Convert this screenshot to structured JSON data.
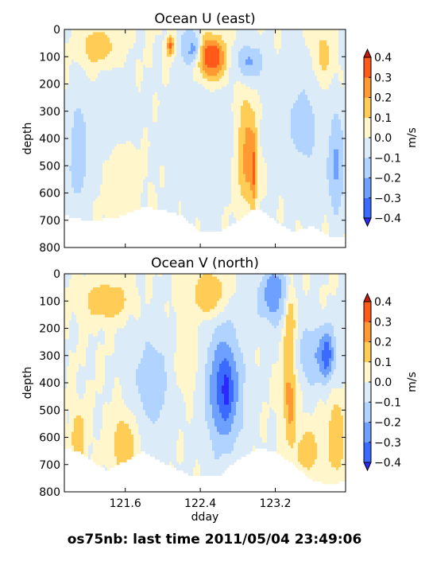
{
  "figure_title": "os75nb: last time 2011/05/04 23:49:06",
  "chart_data": [
    {
      "type": "heatmap",
      "title": "Ocean U (east)",
      "xlabel": "",
      "ylabel": "depth",
      "xlim": [
        120.95,
        123.95
      ],
      "ylim": [
        800,
        0
      ],
      "yticks": [
        "0",
        "100",
        "200",
        "300",
        "400",
        "500",
        "600",
        "700",
        "800"
      ],
      "xticks": [
        "121.6",
        "122.4",
        "123.2"
      ],
      "show_xticklabels": false,
      "colorbar": {
        "label": "m/s",
        "ticks": [
          "0.4",
          "0.3",
          "0.2",
          "0.1",
          "0.0",
          "−0.1",
          "−0.2",
          "−0.3",
          "−0.4"
        ],
        "levels": [
          -0.4,
          -0.3,
          -0.2,
          -0.1,
          0.0,
          0.1,
          0.2,
          0.3,
          0.4
        ],
        "colors": [
          "#2a2aff",
          "#3a6aff",
          "#6ea0ff",
          "#b0d4ff",
          "#dcebf8",
          "#fff6cc",
          "#ffcc55",
          "#ff9a33",
          "#ff5a1a",
          "#cc1a0a"
        ]
      },
      "bottom_profile": [
        [
          120.95,
          680
        ],
        [
          121.2,
          700
        ],
        [
          121.5,
          690
        ],
        [
          121.8,
          650
        ],
        [
          122.0,
          660
        ],
        [
          122.2,
          680
        ],
        [
          122.4,
          740
        ],
        [
          122.6,
          740
        ],
        [
          122.8,
          700
        ],
        [
          123.0,
          650
        ],
        [
          123.2,
          700
        ],
        [
          123.4,
          740
        ],
        [
          123.6,
          720
        ],
        [
          123.8,
          760
        ],
        [
          123.95,
          760
        ]
      ],
      "features": [
        {
          "x": 122.52,
          "y": 120,
          "rx": 0.15,
          "ry": 90,
          "value": 0.45
        },
        {
          "x": 122.52,
          "y": 110,
          "rx": 0.1,
          "ry": 55,
          "value": 0.5
        },
        {
          "x": 122.3,
          "y": 70,
          "rx": 0.06,
          "ry": 40,
          "value": -0.45
        },
        {
          "x": 122.28,
          "y": 60,
          "rx": 0.1,
          "ry": 70,
          "value": -0.2
        },
        {
          "x": 122.08,
          "y": 60,
          "rx": 0.04,
          "ry": 40,
          "value": 0.35
        },
        {
          "x": 121.3,
          "y": 60,
          "rx": 0.12,
          "ry": 40,
          "value": 0.35
        },
        {
          "x": 121.35,
          "y": 80,
          "rx": 0.2,
          "ry": 70,
          "value": 0.15
        },
        {
          "x": 122.85,
          "y": 420,
          "rx": 0.13,
          "ry": 200,
          "value": 0.25
        },
        {
          "x": 122.9,
          "y": 450,
          "rx": 0.07,
          "ry": 150,
          "value": 0.38
        },
        {
          "x": 122.97,
          "y": 500,
          "rx": 0.03,
          "ry": 120,
          "value": 0.45
        },
        {
          "x": 122.92,
          "y": 120,
          "rx": 0.15,
          "ry": 70,
          "value": -0.22
        },
        {
          "x": 123.7,
          "y": 120,
          "rx": 0.12,
          "ry": 120,
          "value": 0.22
        },
        {
          "x": 121.5,
          "y": 300,
          "rx": 0.22,
          "ry": 160,
          "value": -0.08
        },
        {
          "x": 121.1,
          "y": 450,
          "rx": 0.1,
          "ry": 200,
          "value": -0.2
        },
        {
          "x": 121.6,
          "y": 550,
          "rx": 0.2,
          "ry": 150,
          "value": 0.05
        },
        {
          "x": 122.45,
          "y": 400,
          "rx": 0.4,
          "ry": 240,
          "value": -0.1
        },
        {
          "x": 123.5,
          "y": 350,
          "rx": 0.3,
          "ry": 260,
          "value": -0.12
        },
        {
          "x": 123.85,
          "y": 500,
          "rx": 0.08,
          "ry": 200,
          "value": -0.22
        }
      ]
    },
    {
      "type": "heatmap",
      "title": "Ocean V (north)",
      "xlabel": "dday",
      "ylabel": "depth",
      "xlim": [
        120.95,
        123.95
      ],
      "ylim": [
        800,
        0
      ],
      "yticks": [
        "0",
        "100",
        "200",
        "300",
        "400",
        "500",
        "600",
        "700",
        "800"
      ],
      "xticks": [
        "121.6",
        "122.4",
        "123.2"
      ],
      "show_xticklabels": true,
      "colorbar": {
        "label": "m/s",
        "ticks": [
          "0.4",
          "0.3",
          "0.2",
          "0.1",
          "0.0",
          "−0.1",
          "−0.2",
          "−0.3",
          "−0.4"
        ],
        "levels": [
          -0.4,
          -0.3,
          -0.2,
          -0.1,
          0.0,
          0.1,
          0.2,
          0.3,
          0.4
        ],
        "colors": [
          "#2a2aff",
          "#3a6aff",
          "#6ea0ff",
          "#b0d4ff",
          "#dcebf8",
          "#fff6cc",
          "#ffcc55",
          "#ff9a33",
          "#ff5a1a",
          "#cc1a0a"
        ]
      },
      "bottom_profile": [
        [
          120.95,
          640
        ],
        [
          121.1,
          650
        ],
        [
          121.4,
          720
        ],
        [
          121.8,
          650
        ],
        [
          122.0,
          690
        ],
        [
          122.3,
          740
        ],
        [
          122.6,
          740
        ],
        [
          122.8,
          680
        ],
        [
          123.0,
          640
        ],
        [
          123.2,
          650
        ],
        [
          123.4,
          700
        ],
        [
          123.6,
          760
        ],
        [
          123.8,
          770
        ],
        [
          123.95,
          760
        ]
      ],
      "features": [
        {
          "x": 122.5,
          "y": 80,
          "rx": 0.1,
          "ry": 60,
          "value": 0.45
        },
        {
          "x": 122.5,
          "y": 80,
          "rx": 0.2,
          "ry": 80,
          "value": 0.2
        },
        {
          "x": 123.2,
          "y": 70,
          "rx": 0.1,
          "ry": 70,
          "value": -0.45
        },
        {
          "x": 123.2,
          "y": 90,
          "rx": 0.2,
          "ry": 100,
          "value": -0.22
        },
        {
          "x": 122.65,
          "y": 420,
          "rx": 0.25,
          "ry": 260,
          "value": -0.22
        },
        {
          "x": 122.65,
          "y": 420,
          "rx": 0.12,
          "ry": 150,
          "value": -0.35
        },
        {
          "x": 122.68,
          "y": 430,
          "rx": 0.05,
          "ry": 80,
          "value": -0.45
        },
        {
          "x": 123.36,
          "y": 330,
          "rx": 0.04,
          "ry": 190,
          "value": 0.45
        },
        {
          "x": 123.36,
          "y": 360,
          "rx": 0.08,
          "ry": 260,
          "value": 0.25
        },
        {
          "x": 123.65,
          "y": 300,
          "rx": 0.25,
          "ry": 120,
          "value": -0.2
        },
        {
          "x": 123.75,
          "y": 300,
          "rx": 0.06,
          "ry": 80,
          "value": -0.38
        },
        {
          "x": 121.6,
          "y": 620,
          "rx": 0.15,
          "ry": 120,
          "value": 0.22
        },
        {
          "x": 121.1,
          "y": 600,
          "rx": 0.08,
          "ry": 100,
          "value": 0.2
        },
        {
          "x": 121.4,
          "y": 100,
          "rx": 0.25,
          "ry": 70,
          "value": 0.2
        },
        {
          "x": 121.9,
          "y": 400,
          "rx": 0.25,
          "ry": 220,
          "value": -0.15
        },
        {
          "x": 123.55,
          "y": 650,
          "rx": 0.12,
          "ry": 80,
          "value": 0.2
        },
        {
          "x": 123.85,
          "y": 600,
          "rx": 0.1,
          "ry": 150,
          "value": 0.2
        },
        {
          "x": 122.25,
          "y": 300,
          "rx": 0.15,
          "ry": 200,
          "value": 0.05
        }
      ]
    }
  ]
}
